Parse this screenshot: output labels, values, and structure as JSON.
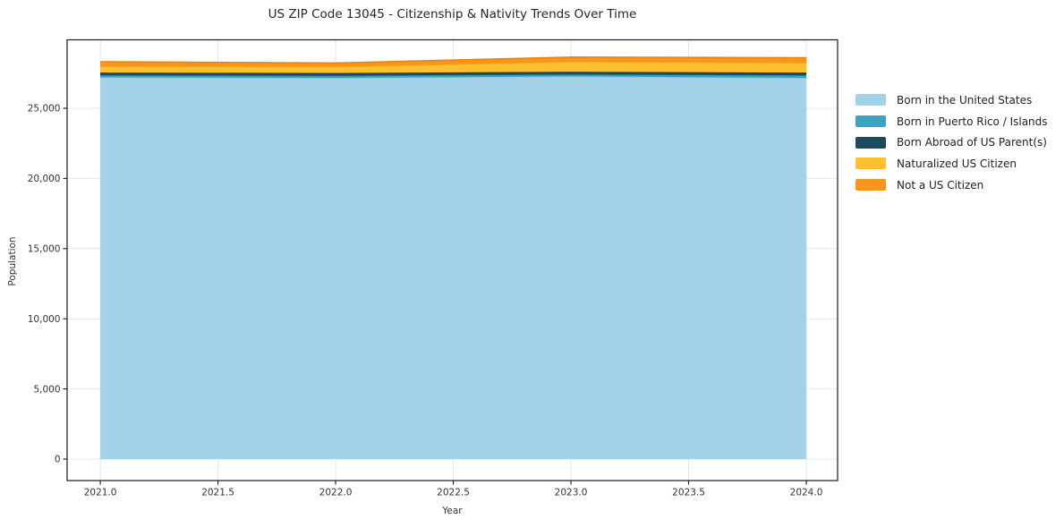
{
  "chart_data": {
    "type": "area",
    "stacked": true,
    "title": "US ZIP Code 13045 - Citizenship & Nativity Trends Over Time",
    "xlabel": "Year",
    "ylabel": "Population",
    "x": [
      2021,
      2022,
      2023,
      2024
    ],
    "series": [
      {
        "name": "Born in the United States",
        "color": "#a3d1e8",
        "edge": "#8cc2dd",
        "values": [
          27200,
          27160,
          27270,
          27160
        ]
      },
      {
        "name": "Born in Puerto Rico / Islands",
        "color": "#3da4bf",
        "edge": "#338ca4",
        "values": [
          150,
          160,
          140,
          190
        ]
      },
      {
        "name": "Born Abroad of US Parent(s)",
        "color": "#1f4a5e",
        "edge": "#16374a",
        "values": [
          190,
          190,
          190,
          190
        ]
      },
      {
        "name": "Naturalized US Citizen",
        "color": "#fdc02f",
        "edge": "#eda81c",
        "values": [
          450,
          450,
          720,
          700
        ]
      },
      {
        "name": "Not a US Citizen",
        "color": "#f8951d",
        "edge": "#e8820c",
        "values": [
          330,
          270,
          330,
          360
        ]
      }
    ],
    "xticks": [
      {
        "v": 2021.0,
        "label": "2021.0"
      },
      {
        "v": 2021.5,
        "label": "2021.5"
      },
      {
        "v": 2022.0,
        "label": "2022.0"
      },
      {
        "v": 2022.5,
        "label": "2022.5"
      },
      {
        "v": 2023.0,
        "label": "2023.0"
      },
      {
        "v": 2023.5,
        "label": "2023.5"
      },
      {
        "v": 2024.0,
        "label": "2024.0"
      }
    ],
    "yticks": [
      {
        "v": 0,
        "label": "0"
      },
      {
        "v": 5000,
        "label": "5,000"
      },
      {
        "v": 10000,
        "label": "10,000"
      },
      {
        "v": 15000,
        "label": "15,000"
      },
      {
        "v": 20000,
        "label": "20,000"
      },
      {
        "v": 25000,
        "label": "25,000"
      }
    ],
    "xlim": [
      2020.859,
      2024.133
    ],
    "ylim": [
      -1531,
      29879
    ],
    "grid": true,
    "grid_color": "#e7e7e7",
    "spine_color": "#1a1a1a",
    "tick_label_color": "#333333",
    "legend_position": "right"
  }
}
